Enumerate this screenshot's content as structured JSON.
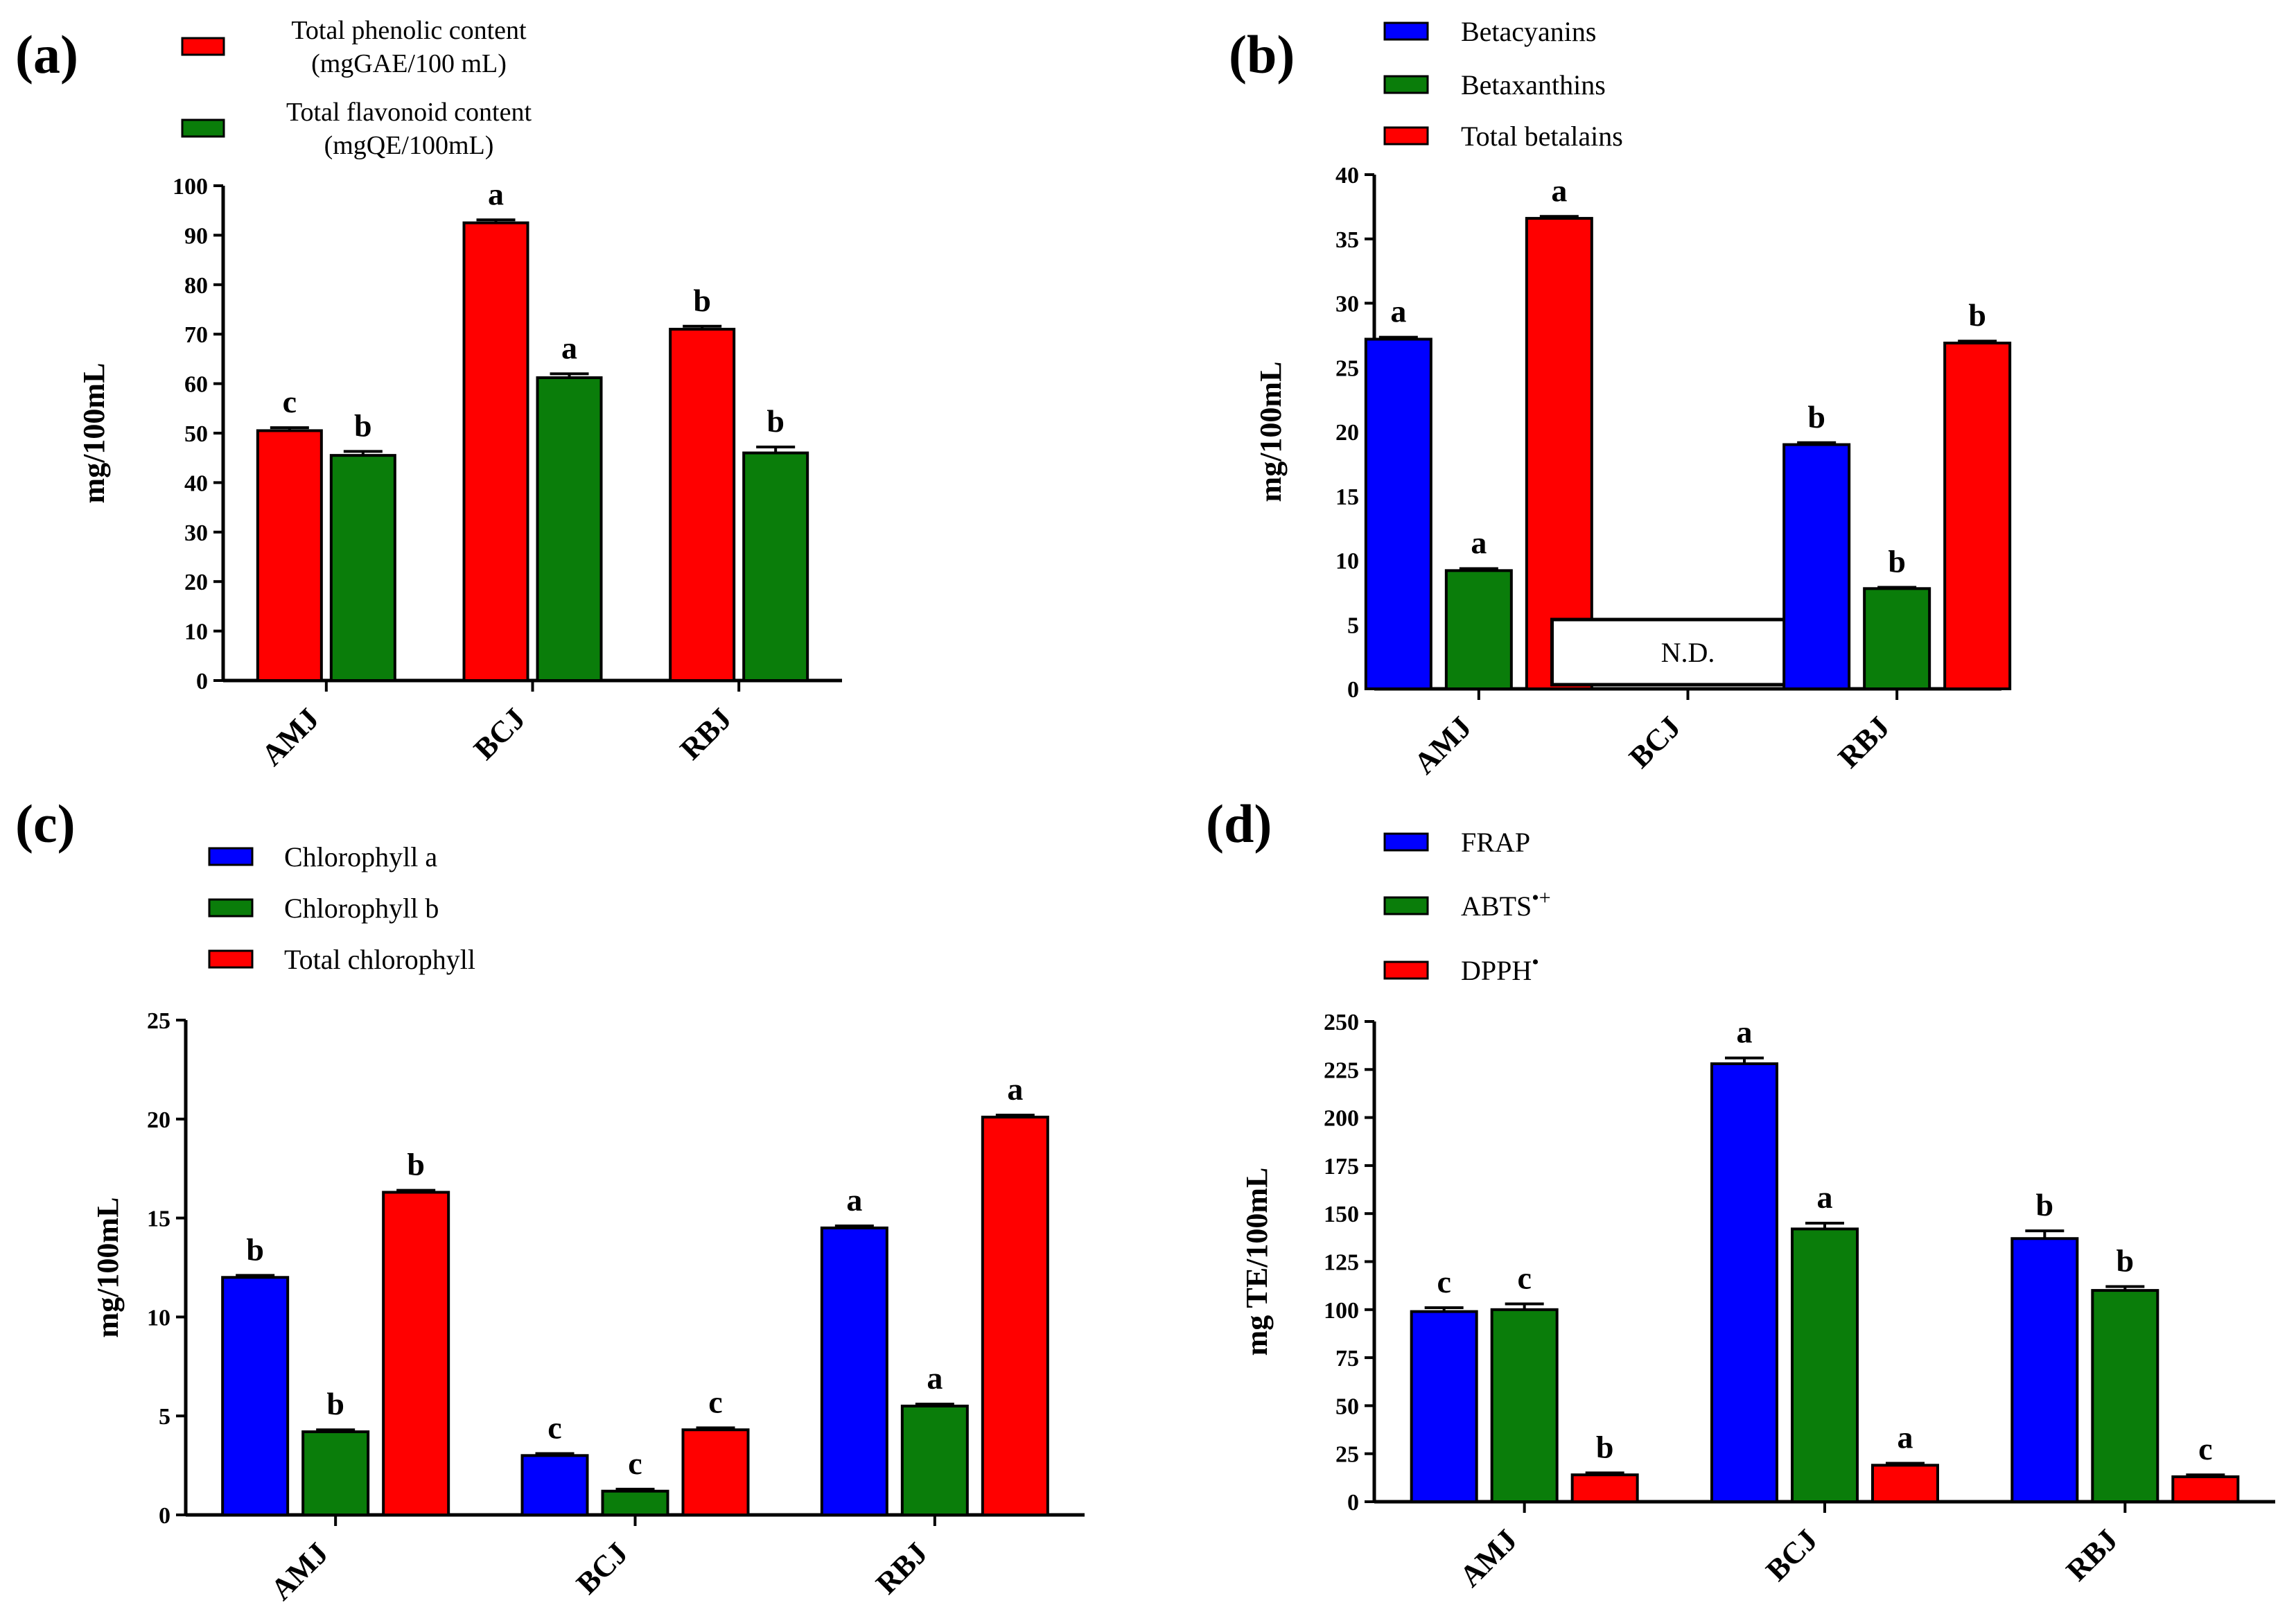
{
  "colors": {
    "red": "#ff0000",
    "green": "#0a7d0a",
    "blue": "#0000ff",
    "axis": "#000000"
  },
  "chart_data": [
    {
      "id": "a",
      "panel_label": "(a)",
      "type": "bar",
      "categories": [
        "AMJ",
        "BCJ",
        "RBJ"
      ],
      "ylabel": "mg/100mL",
      "ylim": [
        0,
        100
      ],
      "yticks": [
        0,
        10,
        20,
        30,
        40,
        50,
        60,
        70,
        80,
        90,
        100
      ],
      "ytick_labels": [
        "0",
        "10",
        "20",
        "30",
        "40",
        "50",
        "60",
        "70",
        "80",
        "90",
        "100"
      ],
      "series": [
        {
          "name": "Total phenolic content (mgGAE/100 mL)",
          "legend_lines": [
            "Total phenolic content",
            "(mgGAE/100 mL)"
          ],
          "color": "red",
          "values": [
            50.5,
            92.5,
            71
          ],
          "errors": [
            0.6,
            0.6,
            0.6
          ],
          "letters": [
            "c",
            "a",
            "b"
          ]
        },
        {
          "name": "Total flavonoid content (mgQE/100mL)",
          "legend_lines": [
            "Total flavonoid content",
            "(mgQE/100mL)"
          ],
          "color": "green",
          "values": [
            45.5,
            61.2,
            46
          ],
          "errors": [
            0.8,
            0.8,
            1.2
          ],
          "letters": [
            "b",
            "a",
            "b"
          ]
        }
      ]
    },
    {
      "id": "b",
      "panel_label": "(b)",
      "type": "bar",
      "categories": [
        "AMJ",
        "BCJ",
        "RBJ"
      ],
      "ylabel": "mg/100mL",
      "ylim": [
        0,
        40
      ],
      "yticks": [
        0,
        5,
        10,
        15,
        20,
        25,
        30,
        35,
        40
      ],
      "ytick_labels": [
        "0",
        "5",
        "10",
        "15",
        "20",
        "25",
        "30",
        "35",
        "40"
      ],
      "annotation": "N.D.",
      "annotation_category": "BCJ",
      "series": [
        {
          "name": "Betacyanins",
          "legend_lines": [
            "Betacyanins"
          ],
          "color": "blue",
          "values": [
            27.2,
            null,
            19
          ],
          "errors": [
            0.15,
            null,
            0.15
          ],
          "letters": [
            "a",
            null,
            "b"
          ]
        },
        {
          "name": "Betaxanthins",
          "legend_lines": [
            "Betaxanthins"
          ],
          "color": "green",
          "values": [
            9.2,
            null,
            7.8
          ],
          "errors": [
            0.15,
            null,
            0.1
          ],
          "letters": [
            "a",
            null,
            "b"
          ]
        },
        {
          "name": "Total betalains",
          "legend_lines": [
            "Total betalains"
          ],
          "color": "red",
          "values": [
            36.6,
            null,
            26.9
          ],
          "errors": [
            0.15,
            null,
            0.15
          ],
          "letters": [
            "a",
            null,
            "b"
          ]
        }
      ]
    },
    {
      "id": "c",
      "panel_label": "(c)",
      "type": "bar",
      "categories": [
        "AMJ",
        "BCJ",
        "RBJ"
      ],
      "ylabel": "mg/100mL",
      "ylim": [
        0,
        25
      ],
      "yticks": [
        0,
        5,
        10,
        15,
        20,
        25
      ],
      "ytick_labels": [
        "0",
        "5",
        "10",
        "15",
        "20",
        "25"
      ],
      "series": [
        {
          "name": "Chlorophyll a",
          "legend_lines": [
            "Chlorophyll a"
          ],
          "color": "blue",
          "values": [
            12,
            3,
            14.5
          ],
          "errors": [
            0.1,
            0.1,
            0.1
          ],
          "letters": [
            "b",
            "c",
            "a"
          ]
        },
        {
          "name": "Chlorophyll b",
          "legend_lines": [
            "Chlorophyll b"
          ],
          "color": "green",
          "values": [
            4.2,
            1.2,
            5.5
          ],
          "errors": [
            0.1,
            0.1,
            0.1
          ],
          "letters": [
            "b",
            "c",
            "a"
          ]
        },
        {
          "name": "Total chlorophyll",
          "legend_lines": [
            "Total chlorophyll"
          ],
          "color": "red",
          "values": [
            16.3,
            4.3,
            20.1
          ],
          "errors": [
            0.1,
            0.1,
            0.1
          ],
          "letters": [
            "b",
            "c",
            "a"
          ]
        }
      ]
    },
    {
      "id": "d",
      "panel_label": "(d)",
      "type": "bar",
      "categories": [
        "AMJ",
        "BCJ",
        "RBJ"
      ],
      "ylabel": "mg TE/100mL",
      "ylim": [
        0,
        250
      ],
      "yticks": [
        0,
        25,
        50,
        75,
        100,
        125,
        150,
        175,
        200,
        225,
        250
      ],
      "ytick_labels": [
        "0",
        "25",
        "50",
        "75",
        "100",
        "125",
        "150",
        "175",
        "200",
        "225",
        "250"
      ],
      "series": [
        {
          "name": "FRAP",
          "legend_lines": [
            "FRAP"
          ],
          "color": "blue",
          "values": [
            99,
            228,
            137
          ],
          "errors": [
            2,
            3,
            4
          ],
          "letters": [
            "c",
            "a",
            "b"
          ]
        },
        {
          "name": "ABTS•+",
          "legend_lines": [
            "ABTS•+"
          ],
          "legend_base": "ABTS",
          "legend_sup": "•+",
          "color": "green",
          "values": [
            100,
            142,
            110
          ],
          "errors": [
            3,
            3,
            2
          ],
          "letters": [
            "c",
            "a",
            "b"
          ]
        },
        {
          "name": "DPPH•",
          "legend_lines": [
            "DPPH•"
          ],
          "legend_base": "DPPH",
          "legend_sup": "•",
          "color": "red",
          "values": [
            14,
            19,
            13
          ],
          "errors": [
            1,
            1,
            1
          ],
          "letters": [
            "b",
            "a",
            "c"
          ]
        }
      ]
    }
  ]
}
